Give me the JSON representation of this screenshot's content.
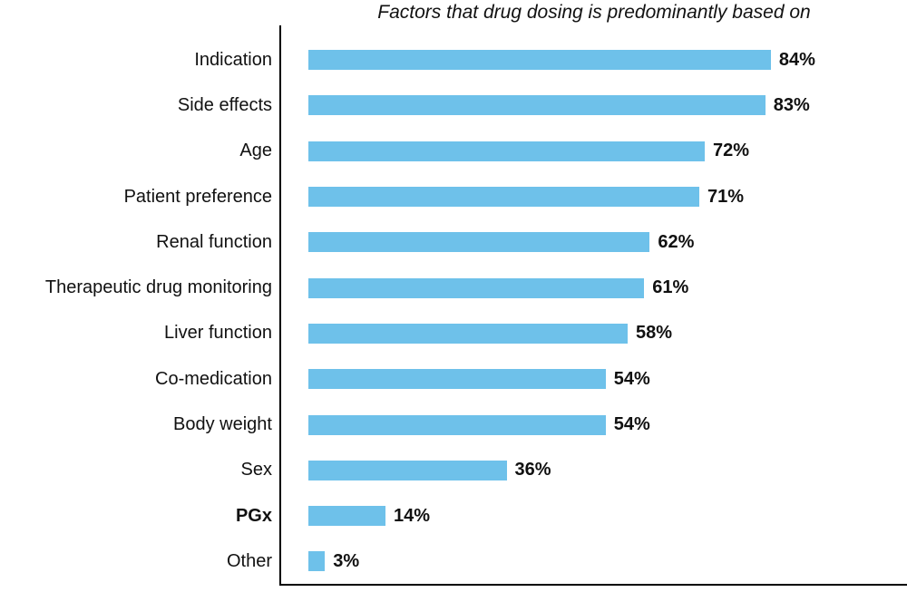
{
  "chart_data": {
    "type": "bar",
    "orientation": "horizontal",
    "title": "Factors that drug dosing is predominantly based on",
    "categories": [
      "Indication",
      "Side effects",
      "Age",
      "Patient preference",
      "Renal function",
      "Therapeutic drug monitoring",
      "Liver function",
      "Co-medication",
      "Body weight",
      "Sex",
      "PGx",
      "Other"
    ],
    "values": [
      84,
      83,
      72,
      71,
      62,
      61,
      58,
      54,
      54,
      36,
      14,
      3
    ],
    "value_suffix": "%",
    "bold_categories": [
      "PGx"
    ],
    "xlabel": "",
    "ylabel": "",
    "xlim": [
      0,
      100
    ],
    "grid": false,
    "legend": false,
    "bar_color": "#6ec1ea",
    "axis_color": "#000000",
    "text_color": "#111111"
  }
}
